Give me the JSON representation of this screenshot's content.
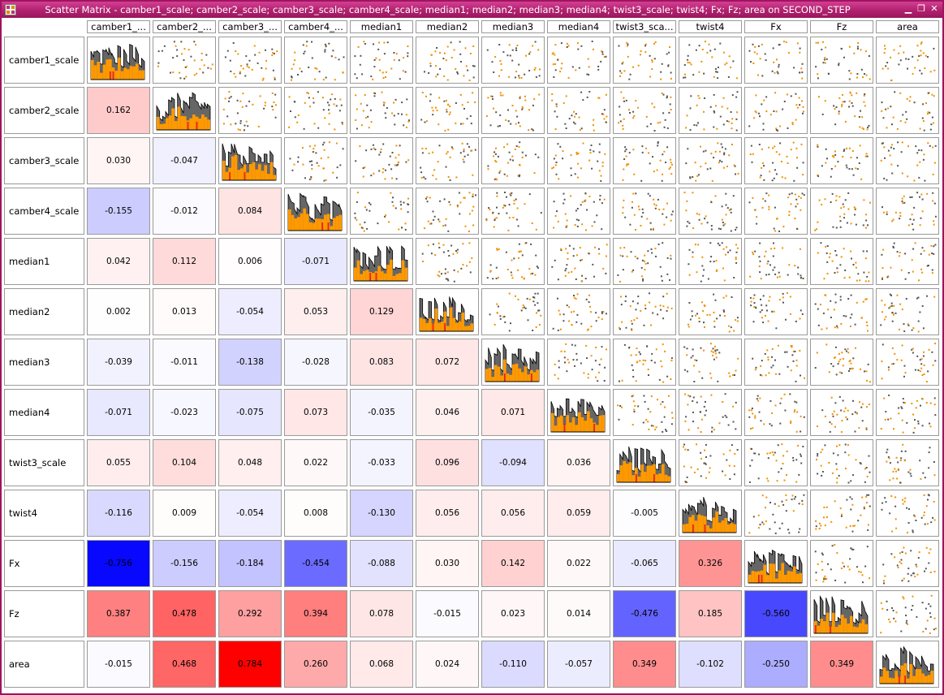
{
  "window": {
    "title": "Scatter Matrix - camber1_scale; camber2_scale; camber3_scale; camber4_scale; median1; median2; median3; median4; twist3_scale; twist4; Fx; Fz; area on SECOND_STEP",
    "icon": "app-grid-icon",
    "buttons": {
      "minimize": "▁",
      "restore": "❐",
      "close": "✕"
    }
  },
  "matrix": {
    "column_headers": [
      "camber1_...",
      "camber2_...",
      "camber3_...",
      "camber4_...",
      "median1",
      "median2",
      "median3",
      "median4",
      "twist3_sca...",
      "twist4",
      "Fx",
      "Fz",
      "area"
    ],
    "variables": [
      "camber1_scale",
      "camber2_scale",
      "camber3_scale",
      "camber4_scale",
      "median1",
      "median2",
      "median3",
      "median4",
      "twist3_scale",
      "twist4",
      "Fx",
      "Fz",
      "area"
    ],
    "correlations": [
      [],
      [
        "0.162"
      ],
      [
        "0.030",
        "-0.047"
      ],
      [
        "-0.155",
        "-0.012",
        "0.084"
      ],
      [
        "0.042",
        "0.112",
        "0.006",
        "-0.071"
      ],
      [
        "0.002",
        "0.013",
        "-0.054",
        "0.053",
        "0.129"
      ],
      [
        "-0.039",
        "-0.011",
        "-0.138",
        "-0.028",
        "0.083",
        "0.072"
      ],
      [
        "-0.071",
        "-0.023",
        "-0.075",
        "0.073",
        "-0.035",
        "0.046",
        "0.071"
      ],
      [
        "0.055",
        "0.104",
        "0.048",
        "0.022",
        "-0.033",
        "0.096",
        "-0.094",
        "0.036"
      ],
      [
        "-0.116",
        "0.009",
        "-0.054",
        "0.008",
        "-0.130",
        "0.056",
        "0.056",
        "0.059",
        "-0.005"
      ],
      [
        "-0.756",
        "-0.156",
        "-0.184",
        "-0.454",
        "-0.088",
        "0.030",
        "0.142",
        "0.022",
        "-0.065",
        "0.326"
      ],
      [
        "0.387",
        "0.478",
        "0.292",
        "0.394",
        "0.078",
        "-0.015",
        "0.023",
        "0.014",
        "-0.476",
        "0.185",
        "-0.560"
      ],
      [
        "-0.015",
        "0.468",
        "0.784",
        "0.260",
        "0.068",
        "0.024",
        "-0.110",
        "-0.057",
        "0.349",
        "-0.102",
        "-0.250",
        "0.349"
      ]
    ],
    "colors": {
      "positive_max": "#ff0000",
      "negative_max": "#0000ff",
      "histogram_dark": "#666666",
      "histogram_fill": "#ff9900",
      "histogram_accent": "#e8231b",
      "point_dark": "#555555",
      "point_orange": "#f09000"
    }
  }
}
